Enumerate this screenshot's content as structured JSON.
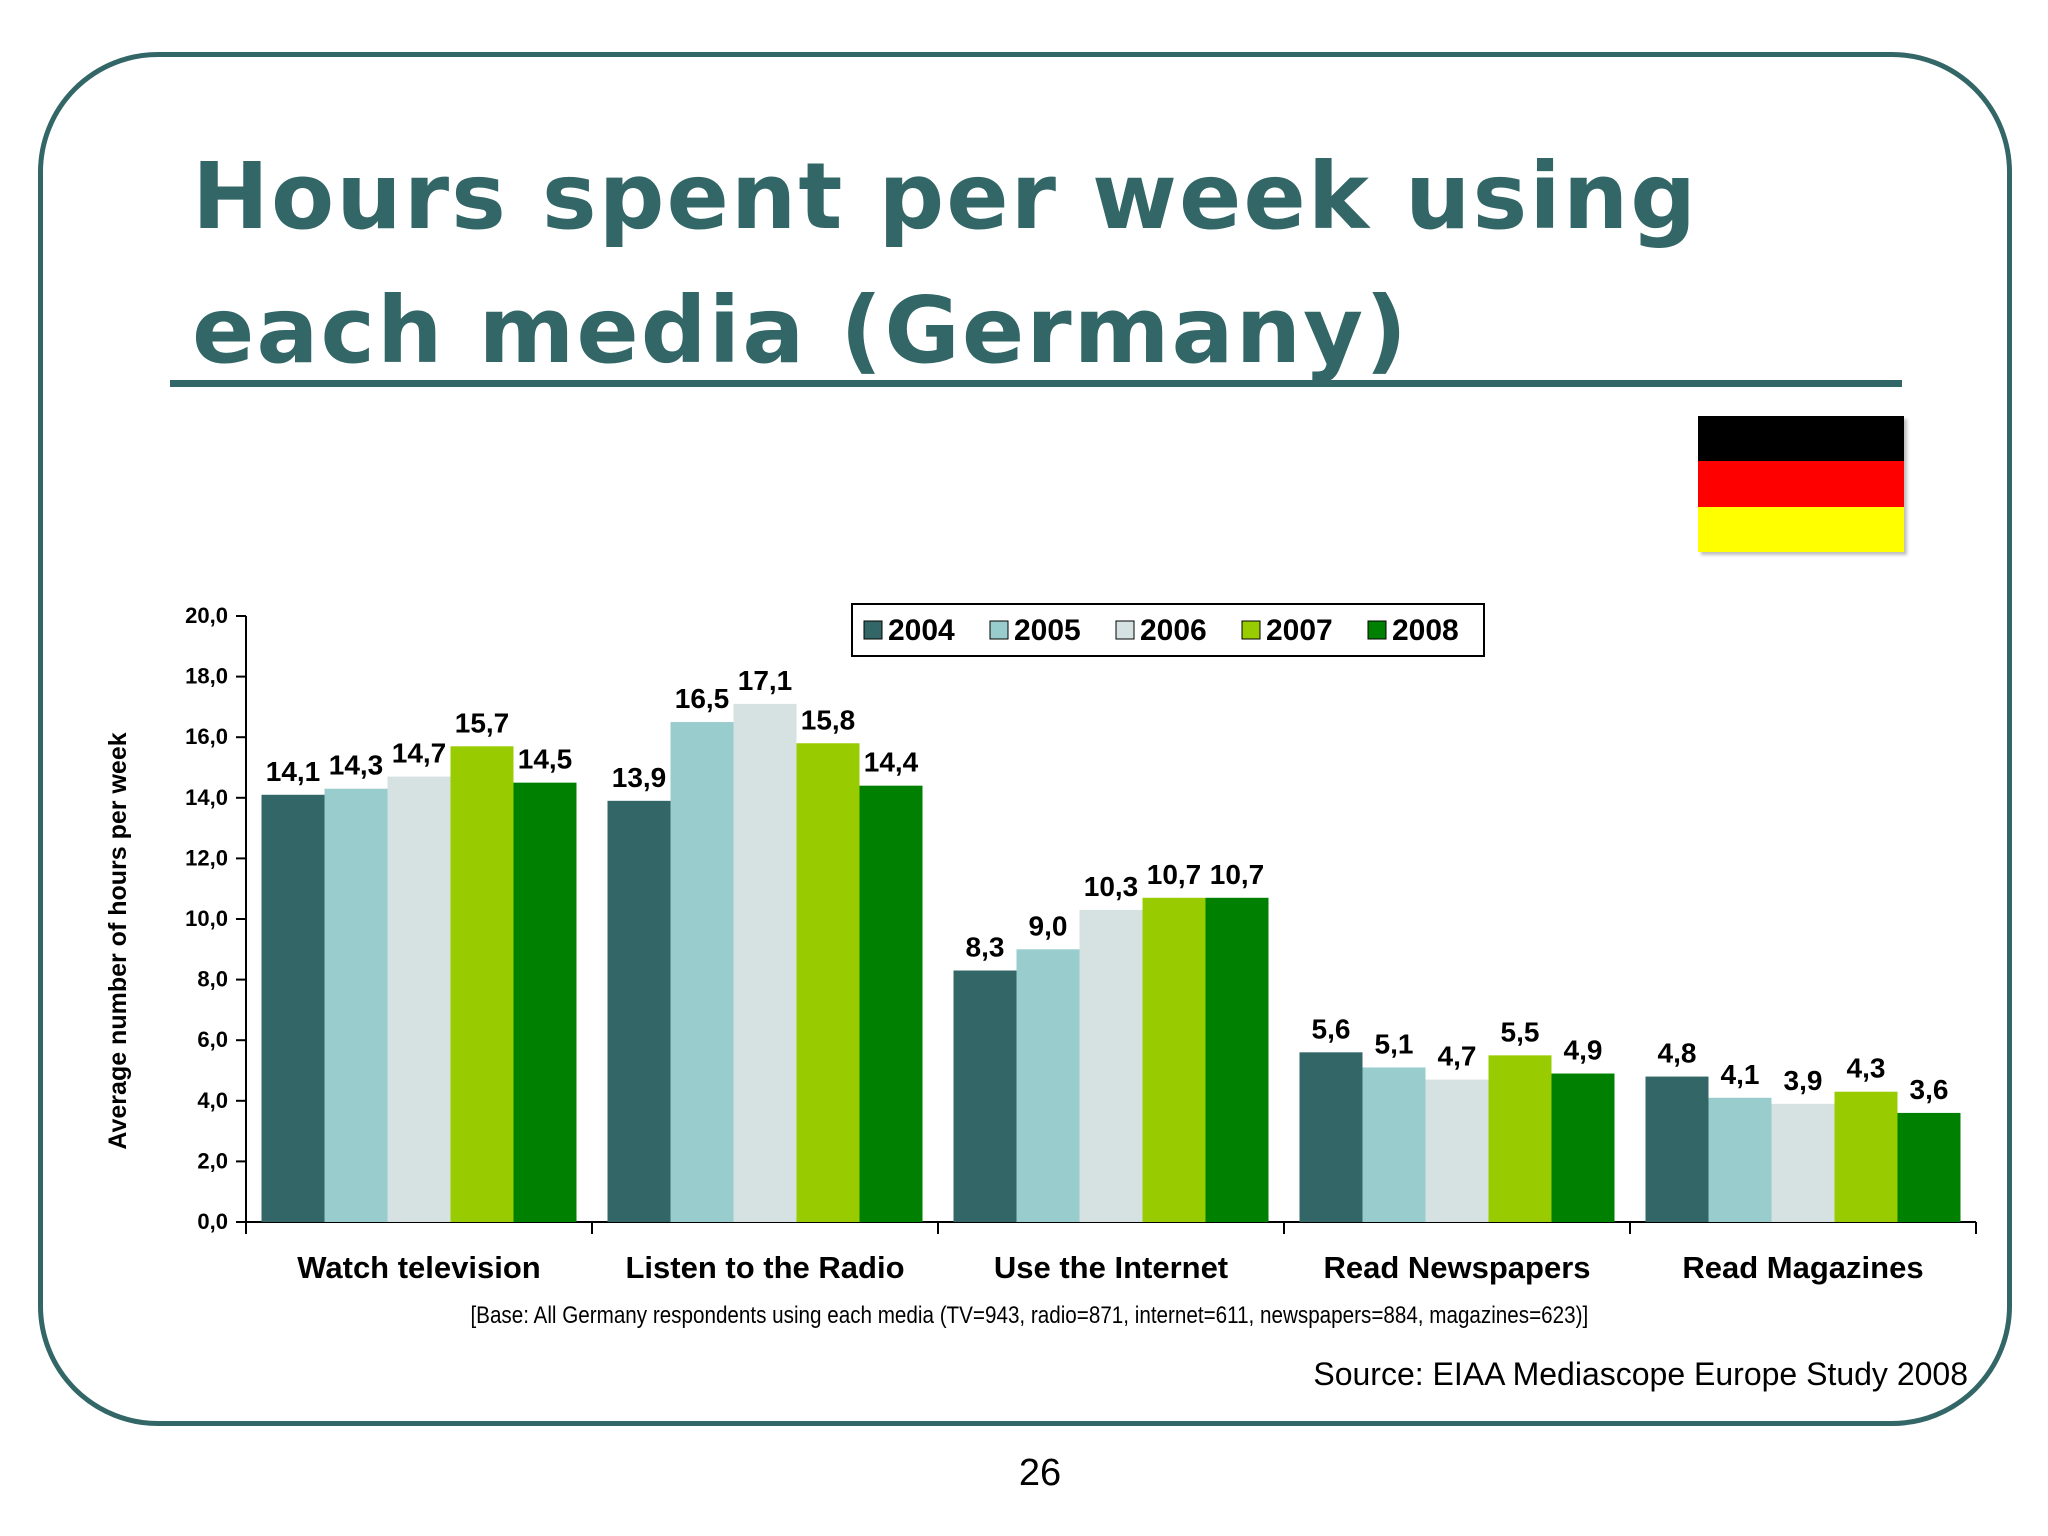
{
  "slide": {
    "title_line1": "Hours spent per week using",
    "title_line2": "each media (Germany)",
    "base_note": "[Base: All Germany respondents using each media (TV=943, radio=871, internet=611, newspapers=884, magazines=623)]",
    "source": "Source: EIAA Mediascope Europe Study 2008",
    "page_number": "26",
    "flag_colors": [
      "#000000",
      "#ff0000",
      "#ffff00"
    ],
    "frame_color": "#336666"
  },
  "chart_data": {
    "type": "bar",
    "title": "",
    "xlabel": "",
    "ylabel": "Average number of hours per week",
    "ylim": [
      0,
      20
    ],
    "yticks": [
      "0,0",
      "2,0",
      "4,0",
      "6,0",
      "8,0",
      "10,0",
      "12,0",
      "14,0",
      "16,0",
      "18,0",
      "20,0"
    ],
    "grid": false,
    "legend_position": "top-right",
    "categories": [
      "Watch television",
      "Listen to the Radio",
      "Use the Internet",
      "Read Newspapers",
      "Read Magazines"
    ],
    "series": [
      {
        "name": "2004",
        "color": "#336666",
        "values": [
          14.1,
          13.9,
          8.3,
          5.6,
          4.8
        ],
        "labels": [
          "14,1",
          "13,9",
          "8,3",
          "5,6",
          "4,8"
        ]
      },
      {
        "name": "2005",
        "color": "#99cccc",
        "values": [
          14.3,
          16.5,
          9.0,
          5.1,
          4.1
        ],
        "labels": [
          "14,3",
          "16,5",
          "9,0",
          "5,1",
          "4,1"
        ]
      },
      {
        "name": "2006",
        "color": "#d5e2e1",
        "values": [
          14.7,
          17.1,
          10.3,
          4.7,
          3.9
        ],
        "labels": [
          "14,7",
          "17,1",
          "10,3",
          "4,7",
          "3,9"
        ]
      },
      {
        "name": "2007",
        "color": "#99cc00",
        "values": [
          15.7,
          15.8,
          10.7,
          5.5,
          4.3
        ],
        "labels": [
          "15,7",
          "15,8",
          "10,7",
          "5,5",
          "4,3"
        ]
      },
      {
        "name": "2008",
        "color": "#008000",
        "values": [
          14.5,
          14.4,
          10.7,
          4.9,
          3.6
        ],
        "labels": [
          "14,5",
          "14,4",
          "10,7",
          "4,9",
          "3,6"
        ]
      }
    ]
  }
}
